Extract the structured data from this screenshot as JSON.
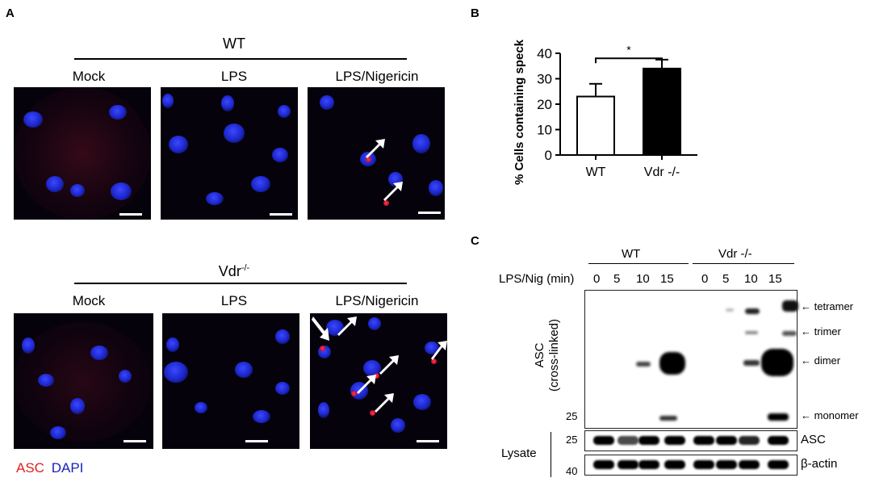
{
  "panels": {
    "a_letter": "A",
    "b_letter": "B",
    "c_letter": "C"
  },
  "panel_a": {
    "top_group": "WT",
    "bottom_group": "Vdr",
    "bottom_group_sup": "-/-",
    "columns": [
      "Mock",
      "LPS",
      "LPS/Nigericin"
    ],
    "legend_asc": "ASC",
    "legend_dapi": "DAPI",
    "legend_asc_color": "#e0201f",
    "legend_dapi_color": "#1a22b8"
  },
  "chart_data": {
    "type": "bar",
    "categories": [
      "WT",
      "Vdr -/-"
    ],
    "values": [
      23,
      34
    ],
    "errors": [
      5,
      3.5
    ],
    "bar_colors": [
      "#ffffff",
      "#000000"
    ],
    "ylabel": "% Cells containing speck",
    "ylim": [
      0,
      40
    ],
    "yticks": [
      0,
      10,
      20,
      30,
      40
    ],
    "significance": "*"
  },
  "panel_c": {
    "groups": [
      "WT",
      "Vdr -/-"
    ],
    "row_label": "LPS/Nig (min)",
    "timepoints": [
      "0",
      "5",
      "10",
      "15",
      "0",
      "5",
      "10",
      "15"
    ],
    "blot_label_line1": "ASC",
    "blot_label_line2": "(cross-linked)",
    "mw_25": "25",
    "mw_40": "40",
    "bands": [
      "tetramer",
      "trimer",
      "dimer",
      "monomer"
    ],
    "lysate_label": "Lysate",
    "lysate_rows": [
      "ASC",
      "β-actin"
    ]
  }
}
